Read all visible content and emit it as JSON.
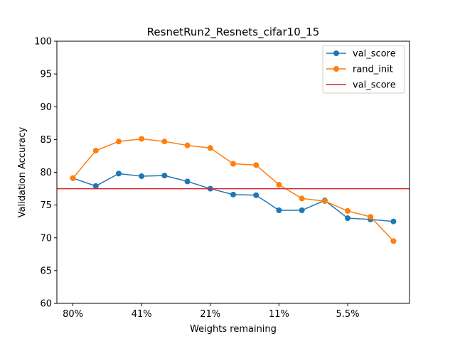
{
  "chart_data": {
    "type": "line",
    "title": "ResnetRun2_Resnets_cifar10_15",
    "xlabel": "Weights remaining",
    "ylabel": "Validation Accuracy",
    "ylim": [
      60,
      100
    ],
    "yticks": [
      60,
      65,
      70,
      75,
      80,
      85,
      90,
      95,
      100
    ],
    "xlim": [
      -0.7,
      14.7
    ],
    "xticks": [
      {
        "index": 0,
        "label": "80%"
      },
      {
        "index": 3,
        "label": "41%"
      },
      {
        "index": 6,
        "label": "21%"
      },
      {
        "index": 9,
        "label": "11%"
      },
      {
        "index": 12,
        "label": "5.5%"
      }
    ],
    "grid": false,
    "legend_position": "top-right",
    "series": [
      {
        "name": "val_score",
        "color": "#1f77b4",
        "marker": "circle",
        "x": [
          0,
          1,
          2,
          3,
          4,
          5,
          6,
          7,
          8,
          9,
          10,
          11,
          12,
          13,
          14
        ],
        "values": [
          79.1,
          77.9,
          79.8,
          79.4,
          79.5,
          78.6,
          77.5,
          76.6,
          76.5,
          74.2,
          74.2,
          75.7,
          73.0,
          72.8,
          72.5
        ]
      },
      {
        "name": "rand_init",
        "color": "#ff7f0e",
        "marker": "circle",
        "x": [
          0,
          1,
          2,
          3,
          4,
          5,
          6,
          7,
          8,
          9,
          10,
          11,
          12,
          13,
          14
        ],
        "values": [
          79.1,
          83.3,
          84.7,
          85.1,
          84.7,
          84.1,
          83.7,
          81.3,
          81.1,
          78.1,
          76.0,
          75.6,
          74.1,
          73.2,
          69.5
        ]
      }
    ],
    "hlines": [
      {
        "name": "val_score",
        "color": "#d62728",
        "y": 77.5
      }
    ]
  }
}
